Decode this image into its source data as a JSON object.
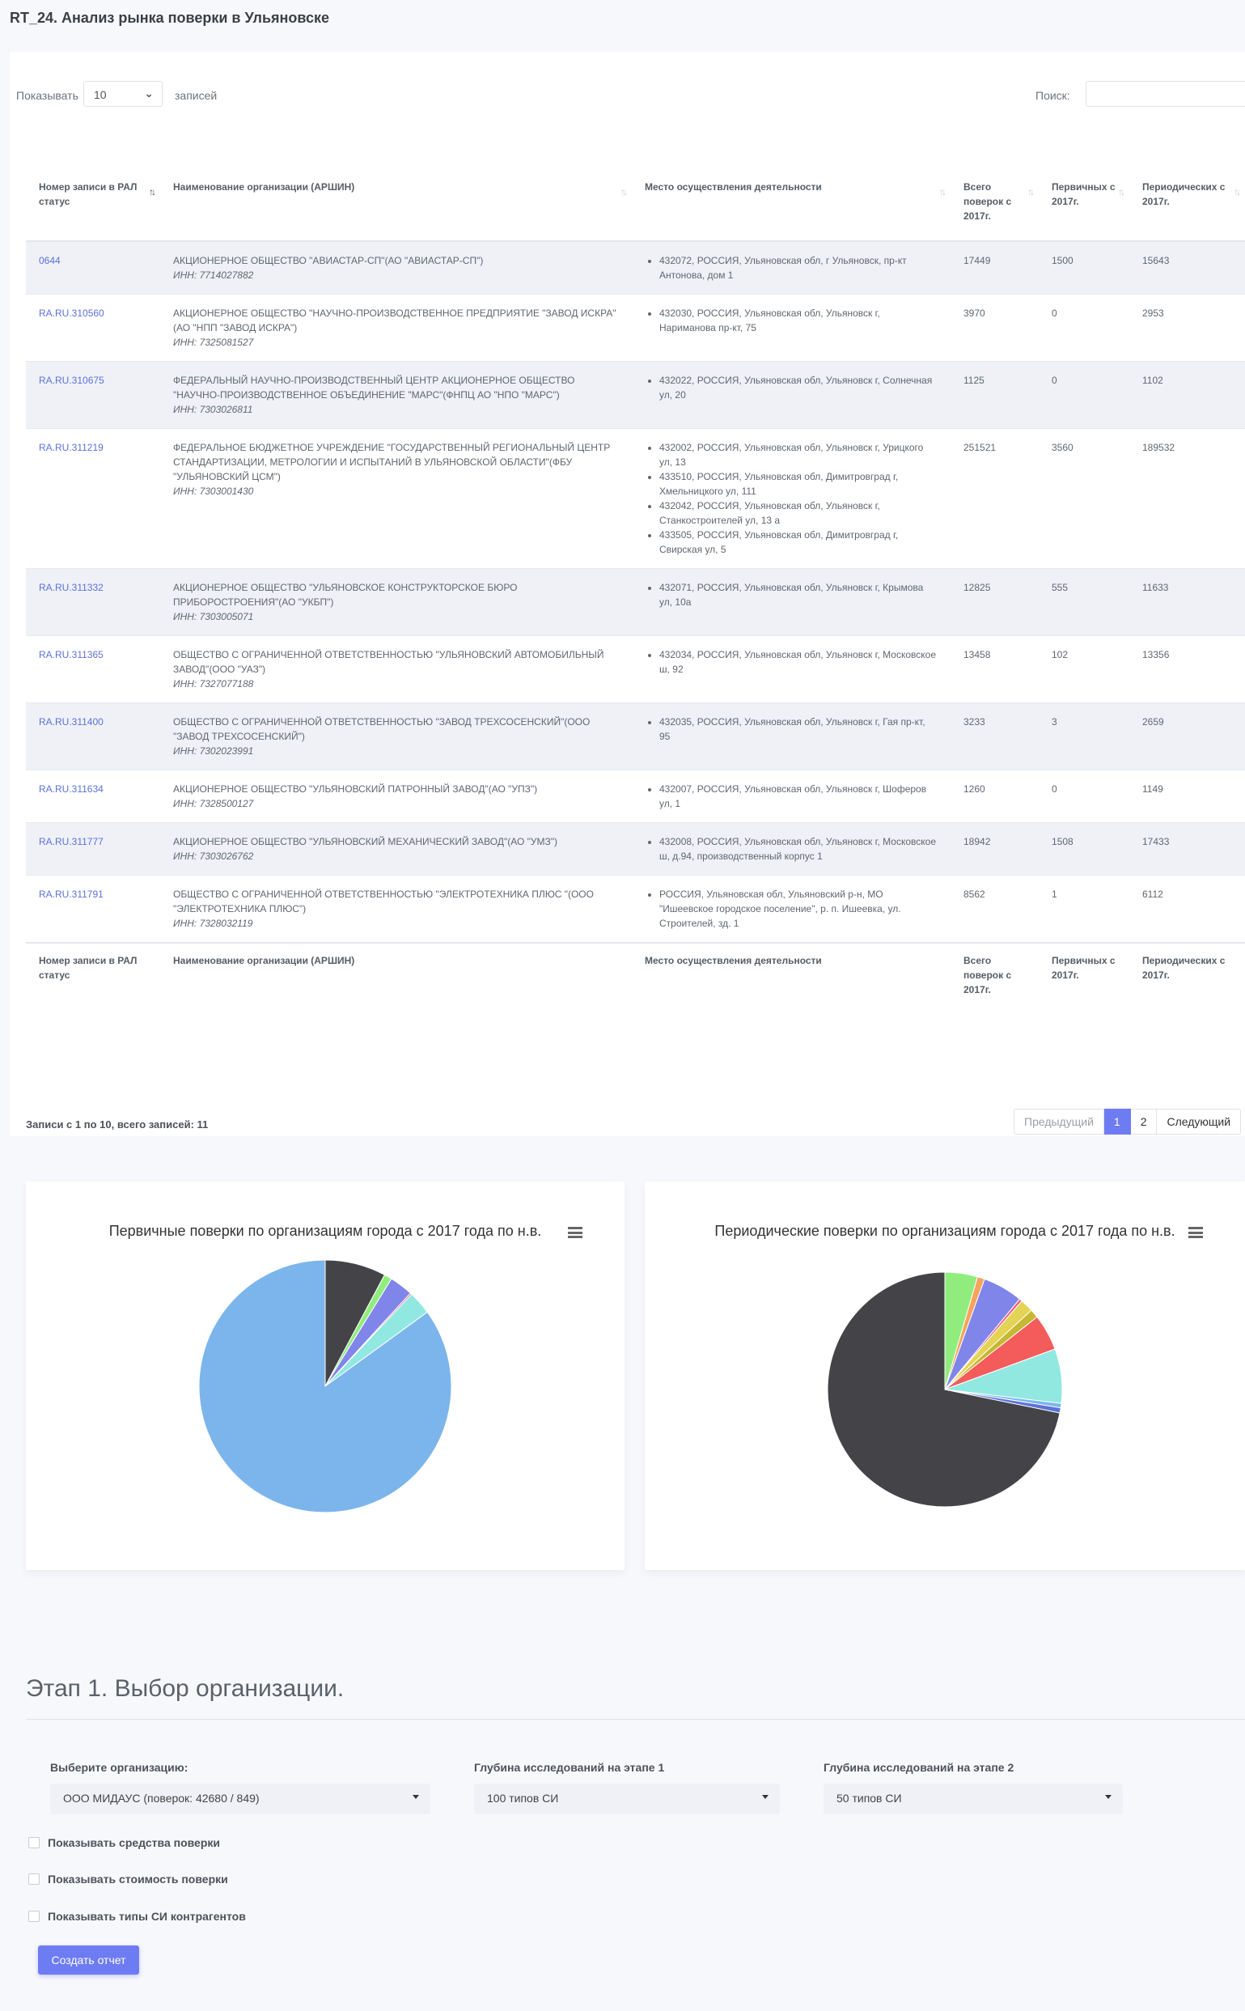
{
  "page": {
    "title": "RT_24. Анализ рынка поверки в Ульяновске"
  },
  "table_controls": {
    "show_label": "Показывать",
    "page_size": "10",
    "entries_label": "записей",
    "search_label": "Поиск:"
  },
  "columns": [
    "Номер записи в РАЛ статус",
    "Наименование организации (АРШИН)",
    "Место осуществления деятельности",
    "Всего поверок с 2017г.",
    "Первичных с 2017г.",
    "Периодических с 2017г."
  ],
  "rows": [
    {
      "id": "0644",
      "name": "АКЦИОНЕРНОЕ ОБЩЕСТВО \"АВИАСТАР-СП\"(АО \"АВИАСТАР-СП\")",
      "inn": "ИНН: 7714027882",
      "places": [
        "432072, РОССИЯ, Ульяновская обл, г Ульяновск, пр-кт Антонова, дом 1"
      ],
      "total": "17449",
      "primary": "1500",
      "periodic": "15643"
    },
    {
      "id": "RA.RU.310560",
      "name": "АКЦИОНЕРНОЕ ОБЩЕСТВО \"НАУЧНО-ПРОИЗВОДСТВЕННОЕ ПРЕДПРИЯТИЕ \"ЗАВОД ИСКРА\"(АО \"НПП \"ЗАВОД ИСКРА\")",
      "inn": "ИНН: 7325081527",
      "places": [
        "432030, РОССИЯ, Ульяновская обл, Ульяновск г, Нариманова пр-кт, 75"
      ],
      "total": "3970",
      "primary": "0",
      "periodic": "2953"
    },
    {
      "id": "RA.RU.310675",
      "name": "ФЕДЕРАЛЬНЫЙ НАУЧНО-ПРОИЗВОДСТВЕННЫЙ ЦЕНТР АКЦИОНЕРНОЕ ОБЩЕСТВО \"НАУЧНО-ПРОИЗВОДСТВЕННОЕ ОБЪЕДИНЕНИЕ \"МАРС\"(ФНПЦ АО \"НПО \"МАРС\")",
      "inn": "ИНН: 7303026811",
      "places": [
        "432022, РОССИЯ, Ульяновская обл, Ульяновск г, Солнечная ул, 20"
      ],
      "total": "1125",
      "primary": "0",
      "periodic": "1102"
    },
    {
      "id": "RA.RU.311219",
      "name": "ФЕДЕРАЛЬНОЕ БЮДЖЕТНОЕ УЧРЕЖДЕНИЕ \"ГОСУДАРСТВЕННЫЙ РЕГИОНАЛЬНЫЙ ЦЕНТР СТАНДАРТИЗАЦИИ, МЕТРОЛОГИИ И ИСПЫТАНИЙ В УЛЬЯНОВСКОЙ ОБЛАСТИ\"(ФБУ \"УЛЬЯНОВСКИЙ ЦСМ\")",
      "inn": "ИНН: 7303001430",
      "places": [
        "432002, РОССИЯ, Ульяновская обл, Ульяновск г, Урицкого ул, 13",
        "433510, РОССИЯ, Ульяновская обл, Димитровград г, Хмельницкого ул, 111",
        "432042, РОССИЯ, Ульяновская обл, Ульяновск г, Станкостроителей ул, 13 а",
        "433505, РОССИЯ, Ульяновская обл, Димитровград г, Свирская ул, 5"
      ],
      "total": "251521",
      "primary": "3560",
      "periodic": "189532"
    },
    {
      "id": "RA.RU.311332",
      "name": "АКЦИОНЕРНОЕ ОБЩЕСТВО \"УЛЬЯНОВСКОЕ КОНСТРУКТОРСКОЕ БЮРО ПРИБОРОСТРОЕНИЯ\"(АО \"УКБП\")",
      "inn": "ИНН: 7303005071",
      "places": [
        "432071, РОССИЯ, Ульяновская обл, Ульяновск г, Крымова ул, 10а"
      ],
      "total": "12825",
      "primary": "555",
      "periodic": "11633"
    },
    {
      "id": "RA.RU.311365",
      "name": "ОБЩЕСТВО С ОГРАНИЧЕННОЙ ОТВЕТСТВЕННОСТЬЮ \"УЛЬЯНОВСКИЙ АВТОМОБИЛЬНЫЙ ЗАВОД\"(ООО \"УАЗ\")",
      "inn": "ИНН: 7327077188",
      "places": [
        "432034, РОССИЯ, Ульяновская обл, Ульяновск г, Московское ш, 92"
      ],
      "total": "13458",
      "primary": "102",
      "periodic": "13356"
    },
    {
      "id": "RA.RU.311400",
      "name": "ОБЩЕСТВО С ОГРАНИЧЕННОЙ ОТВЕТСТВЕННОСТЬЮ \"ЗАВОД ТРЕХСОСЕНСКИЙ\"(ООО \"ЗАВОД ТРЕХСОСЕНСКИЙ\")",
      "inn": "ИНН: 7302023991",
      "places": [
        "432035, РОССИЯ, Ульяновская обл, Ульяновск г, Гая пр-кт, 95"
      ],
      "total": "3233",
      "primary": "3",
      "periodic": "2659"
    },
    {
      "id": "RA.RU.311634",
      "name": "АКЦИОНЕРНОЕ ОБЩЕСТВО \"УЛЬЯНОВСКИЙ ПАТРОННЫЙ ЗАВОД\"(АО \"УПЗ\")",
      "inn": "ИНН: 7328500127",
      "places": [
        "432007, РОССИЯ, Ульяновская обл, Ульяновск г, Шоферов ул, 1"
      ],
      "total": "1260",
      "primary": "0",
      "periodic": "1149"
    },
    {
      "id": "RA.RU.311777",
      "name": "АКЦИОНЕРНОЕ ОБЩЕСТВО \"УЛЬЯНОВСКИЙ МЕХАНИЧЕСКИЙ ЗАВОД\"(АО \"УМЗ\")",
      "inn": "ИНН: 7303026762",
      "places": [
        "432008, РОССИЯ, Ульяновская обл, Ульяновск г, Московское ш, д.94, производственный корпус 1"
      ],
      "total": "18942",
      "primary": "1508",
      "periodic": "17433"
    },
    {
      "id": "RA.RU.311791",
      "name": "ОБЩЕСТВО С ОГРАНИЧЕННОЙ ОТВЕТСТВЕННОСТЬЮ \"ЭЛЕКТРОТЕХНИКА ПЛЮС \"(ООО \"ЭЛЕКТРОТЕХНИКА ПЛЮС\")",
      "inn": "ИНН: 7328032119",
      "places": [
        "РОССИЯ, Ульяновская обл, Ульяновский р-н, МО \"Ишеевское городское поселение\", р. п. Ишеевка, ул. Строителей, зд. 1"
      ],
      "total": "8562",
      "primary": "1",
      "periodic": "6112"
    }
  ],
  "table_info": "Записи с 1 по 10, всего записей: 11",
  "pagination": {
    "prev": "Предыдущий",
    "pages": [
      "1",
      "2"
    ],
    "next": "Следующий"
  },
  "chart_data": [
    {
      "type": "pie",
      "title": "Первичные поверки по организациям города с 2017 года по н.в.",
      "slices": [
        {
          "value": 0.85,
          "color": "#7cb5ec"
        },
        {
          "value": 0.078,
          "color": "#434348"
        },
        {
          "value": 0.01,
          "color": "#90ed7d"
        },
        {
          "value": 0.03,
          "color": "#8085e9"
        },
        {
          "value": 0.002,
          "color": "#f15c80"
        },
        {
          "value": 0.03,
          "color": "#91e8e1"
        }
      ]
    },
    {
      "type": "pie",
      "title": "Периодические поверки по организациям города с 2017 года по н.в.",
      "slices": [
        {
          "value": 0.718,
          "color": "#434348"
        },
        {
          "value": 0.045,
          "color": "#90ed7d"
        },
        {
          "value": 0.01,
          "color": "#f7a35c"
        },
        {
          "value": 0.055,
          "color": "#8085e9"
        },
        {
          "value": 0.004,
          "color": "#f15c80"
        },
        {
          "value": 0.018,
          "color": "#e4d354"
        },
        {
          "value": 0.012,
          "color": "#c6b830"
        },
        {
          "value": 0.05,
          "color": "#f45b5b"
        },
        {
          "value": 0.075,
          "color": "#91e8e1"
        },
        {
          "value": 0.006,
          "color": "#7cb5ec"
        },
        {
          "value": 0.007,
          "color": "#5b72d8"
        }
      ]
    }
  ],
  "stage": {
    "title": "Этап 1. Выбор организации.",
    "org_label": "Выберите организацию:",
    "org_value": "ООО МИДАУС (поверок: 42680 / 849)",
    "depth1_label": "Глубина исследований на этапе 1",
    "depth1_value": "100 типов СИ",
    "depth2_label": "Глубина исследований на этапе 2",
    "depth2_value": "50 типов СИ",
    "checkboxes": [
      "Показывать средства поверки",
      "Показывать стоимость поверки",
      "Показывать типы СИ контрагентов"
    ],
    "button": "Создать отчет"
  }
}
